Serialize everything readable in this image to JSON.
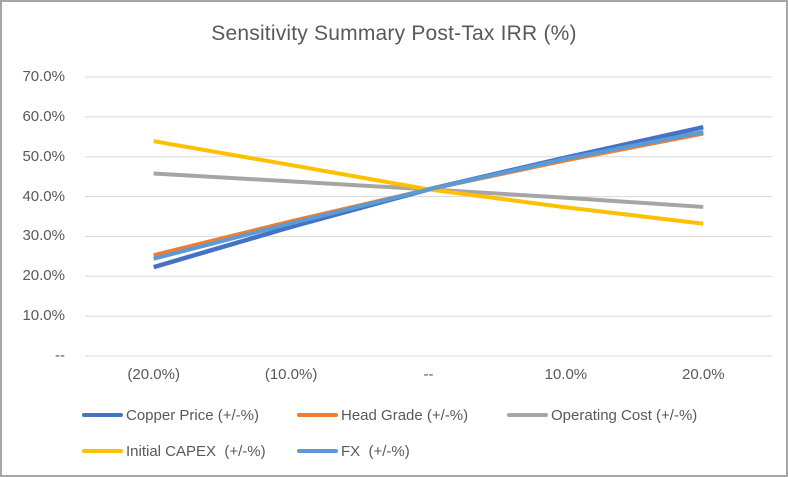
{
  "window": {
    "background": "#ffffff",
    "border_color": "#a6a6a6"
  },
  "chart_data": {
    "type": "line",
    "title": "Sensitivity Summary Post-Tax IRR (%)",
    "xlabel": "",
    "ylabel": "",
    "x_tick_labels": [
      "(20.0%)",
      "(10.0%)",
      "--",
      "10.0%",
      "20.0%"
    ],
    "x_values_pct_change": [
      -20,
      -10,
      0,
      10,
      20
    ],
    "y_tick_labels": [
      "70.0%",
      "60.0%",
      "50.0%",
      "40.0%",
      "30.0%",
      "20.0%",
      "10.0%",
      "--"
    ],
    "y_tick_values": [
      70,
      60,
      50,
      40,
      30,
      20,
      10,
      0
    ],
    "ylim": [
      0,
      70
    ],
    "grid": true,
    "gridline_color": "#d9d9d9",
    "text_color": "#595959",
    "legend_position": "bottom",
    "series": [
      {
        "name": "Copper Price (+/-%)",
        "color": "#4472C4",
        "values": [
          22.3,
          32.4,
          41.8,
          49.8,
          57.4
        ]
      },
      {
        "name": "Head Grade (+/-%)",
        "color": "#ED7D31",
        "values": [
          25.3,
          33.8,
          41.8,
          49.1,
          55.8
        ]
      },
      {
        "name": "Operating Cost (+/-%)",
        "color": "#A5A5A5",
        "values": [
          45.8,
          43.8,
          41.8,
          39.7,
          37.4
        ]
      },
      {
        "name": "Initial CAPEX  (+/-%)",
        "color": "#FFC000",
        "values": [
          53.9,
          47.9,
          41.8,
          37.3,
          33.2
        ]
      },
      {
        "name": "FX  (+/-%)",
        "color": "#5B9BD5",
        "values": [
          24.4,
          33.3,
          41.8,
          49.5,
          56.2
        ]
      }
    ]
  }
}
